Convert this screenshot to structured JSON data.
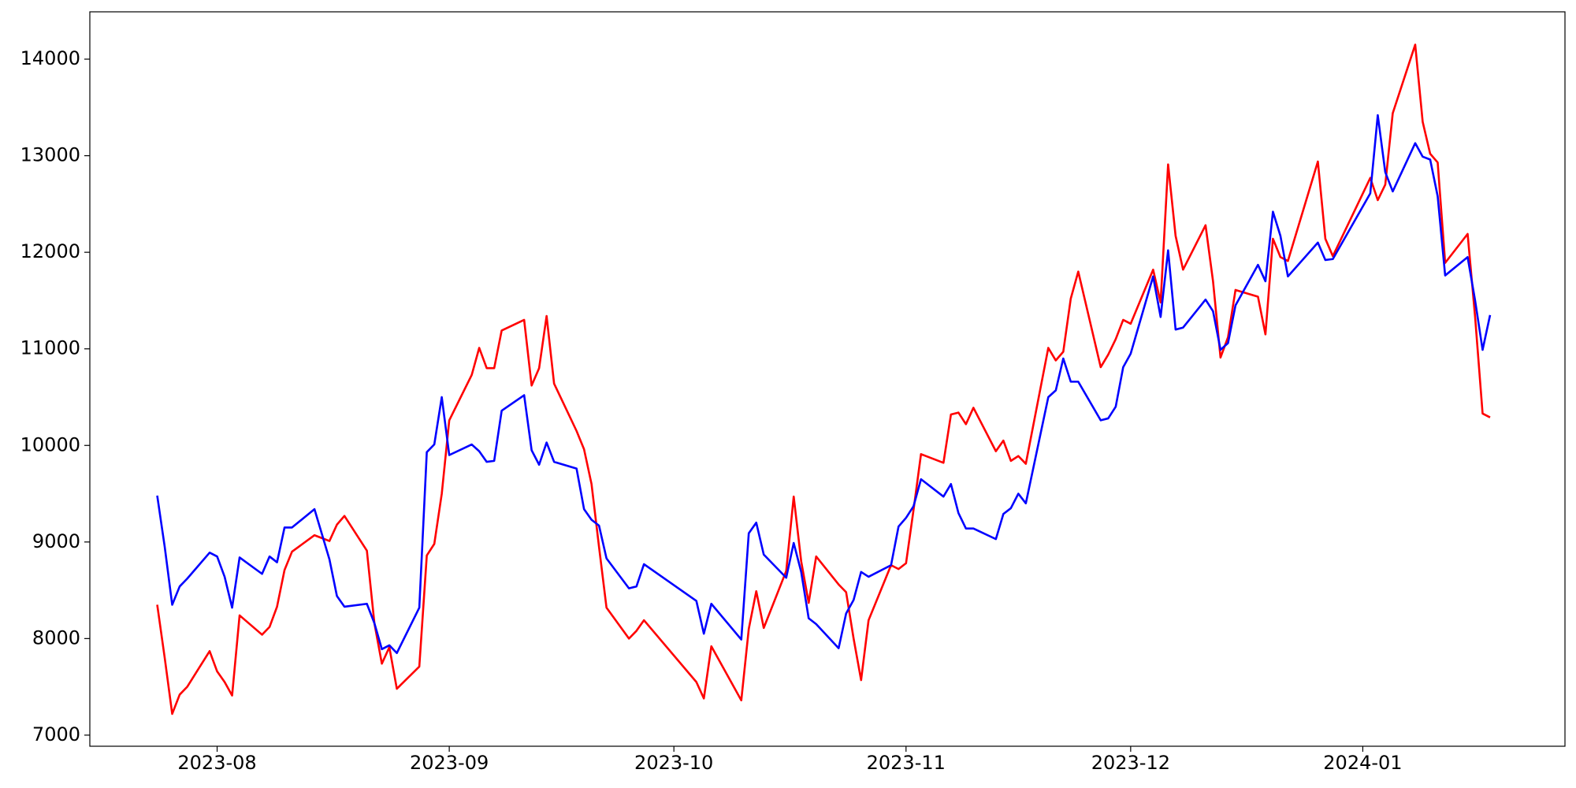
{
  "chart_data": {
    "type": "line",
    "x": [
      19562,
      19563,
      19564,
      19565,
      19566,
      19569,
      19570,
      19571,
      19572,
      19573,
      19576,
      19577,
      19578,
      19579,
      19580,
      19583,
      19584,
      19585,
      19586,
      19587,
      19590,
      19591,
      19592,
      19593,
      19594,
      19597,
      19598,
      19599,
      19600,
      19601,
      19604,
      19605,
      19606,
      19607,
      19608,
      19611,
      19612,
      19613,
      19614,
      19615,
      19618,
      19619,
      19620,
      19621,
      19622,
      19625,
      19626,
      19627,
      19634,
      19635,
      19636,
      19640,
      19641,
      19642,
      19643,
      19646,
      19647,
      19648,
      19649,
      19650,
      19653,
      19654,
      19655,
      19656,
      19657,
      19660,
      19661,
      19662,
      19663,
      19664,
      19667,
      19668,
      19669,
      19670,
      19671,
      19674,
      19675,
      19676,
      19677,
      19678,
      19681,
      19682,
      19683,
      19684,
      19685,
      19688,
      19689,
      19690,
      19691,
      19692,
      19695,
      19696,
      19697,
      19698,
      19699,
      19702,
      19703,
      19704,
      19705,
      19706,
      19709,
      19710,
      19711,
      19712,
      19713,
      19717,
      19718,
      19719,
      19724,
      19725,
      19726,
      19727,
      19730,
      19731,
      19732,
      19733,
      19734,
      19737,
      19738,
      19739,
      19740
    ],
    "series": [
      {
        "color": "#ff0000",
        "values": [
          8350,
          7800,
          7220,
          7420,
          7500,
          7870,
          7660,
          7550,
          7410,
          8240,
          8040,
          8120,
          8330,
          8710,
          8900,
          9070,
          9040,
          9010,
          9180,
          9270,
          8910,
          8160,
          7740,
          7910,
          7480,
          7710,
          8860,
          8980,
          9500,
          10260,
          10730,
          11010,
          10800,
          10800,
          11190,
          11300,
          10620,
          10800,
          11340,
          10640,
          10150,
          9960,
          9600,
          8950,
          8320,
          8000,
          8080,
          8190,
          7550,
          7380,
          7920,
          7360,
          8100,
          8490,
          8110,
          8700,
          9470,
          8800,
          8370,
          8850,
          8560,
          8480,
          8000,
          7570,
          8190,
          8760,
          8720,
          8780,
          9330,
          9910,
          9820,
          10320,
          10340,
          10220,
          10390,
          9940,
          10050,
          9840,
          9890,
          9810,
          11010,
          10880,
          10970,
          11520,
          11800,
          10810,
          10940,
          11100,
          11300,
          11260,
          11820,
          11480,
          12910,
          12170,
          11820,
          12280,
          11700,
          10910,
          11120,
          11610,
          11540,
          11150,
          12140,
          11950,
          11910,
          12940,
          12140,
          11960,
          12770,
          12540,
          12700,
          13440,
          14150,
          13350,
          13020,
          12930,
          11890,
          12190,
          11330,
          10330,
          10290
        ]
      },
      {
        "color": "#0000ff",
        "values": [
          9480,
          8950,
          8350,
          8540,
          8620,
          8890,
          8850,
          8640,
          8320,
          8840,
          8670,
          8850,
          8790,
          9150,
          9150,
          9340,
          9080,
          8820,
          8440,
          8330,
          8360,
          8160,
          7890,
          7930,
          7850,
          8320,
          9930,
          10010,
          10500,
          9900,
          10010,
          9940,
          9830,
          9840,
          10360,
          10520,
          9950,
          9800,
          10030,
          9830,
          9760,
          9340,
          9230,
          9170,
          8830,
          8520,
          8540,
          8770,
          8390,
          8050,
          8360,
          7990,
          9090,
          9200,
          8870,
          8630,
          8990,
          8690,
          8210,
          8150,
          7900,
          8260,
          8400,
          8690,
          8640,
          8760,
          9160,
          9250,
          9370,
          9650,
          9470,
          9600,
          9300,
          9140,
          9140,
          9030,
          9290,
          9350,
          9500,
          9400,
          10500,
          10570,
          10900,
          10660,
          10660,
          10260,
          10280,
          10400,
          10810,
          10950,
          11750,
          11330,
          12020,
          11200,
          11220,
          11510,
          11390,
          10990,
          11060,
          11450,
          11870,
          11700,
          12420,
          12170,
          11750,
          12100,
          11920,
          11930,
          12610,
          13420,
          12830,
          12630,
          13130,
          12990,
          12960,
          12580,
          11760,
          11950,
          11500,
          10990,
          11350
        ]
      }
    ],
    "xlim": [
      19553,
      19750
    ],
    "xticks": [
      {
        "value": 19570,
        "label": "2023-08"
      },
      {
        "value": 19601,
        "label": "2023-09"
      },
      {
        "value": 19631,
        "label": "2023-10"
      },
      {
        "value": 19662,
        "label": "2023-11"
      },
      {
        "value": 19692,
        "label": "2023-12"
      },
      {
        "value": 19723,
        "label": "2024-01"
      }
    ],
    "ylim": [
      6885,
      14490
    ],
    "yticks": [
      7000,
      8000,
      9000,
      10000,
      11000,
      12000,
      13000,
      14000
    ],
    "grid": false
  }
}
